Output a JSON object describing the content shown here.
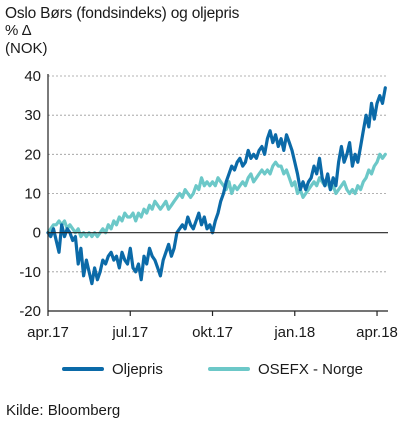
{
  "header": {
    "title": "Oslo Børs (fondsindeks) og oljepris",
    "unit_line1": "% Δ",
    "unit_line2": "(NOK)"
  },
  "source": "Kilde: Bloomberg",
  "colors": {
    "oljepris": "#0b6aa8",
    "osefx": "#6cc8c8",
    "grid": "#9a9a9a",
    "axis": "#222222"
  },
  "chart_data": {
    "type": "line",
    "title": "Oslo Børs (fondsindeks) og oljepris",
    "ylabel": "% Δ (NOK)",
    "xlabel": "",
    "ylim": [
      -20,
      40
    ],
    "yticks": [
      -20,
      -10,
      0,
      10,
      20,
      30,
      40
    ],
    "xlim": [
      0,
      12.4
    ],
    "xticks": [
      {
        "label": "apr.17",
        "pos": 0
      },
      {
        "label": "jul.17",
        "pos": 3
      },
      {
        "label": "okt.17",
        "pos": 6
      },
      {
        "label": "jan.18",
        "pos": 9
      },
      {
        "label": "apr.18",
        "pos": 12
      }
    ],
    "grid": "horizontal",
    "legend": "bottom",
    "series": [
      {
        "name": "Oljepris",
        "x": [
          0,
          0.1,
          0.2,
          0.3,
          0.4,
          0.5,
          0.6,
          0.7,
          0.8,
          0.9,
          1.0,
          1.1,
          1.2,
          1.3,
          1.4,
          1.5,
          1.6,
          1.7,
          1.8,
          1.9,
          2.0,
          2.1,
          2.2,
          2.3,
          2.4,
          2.5,
          2.6,
          2.7,
          2.8,
          2.9,
          3.0,
          3.1,
          3.2,
          3.3,
          3.4,
          3.5,
          3.6,
          3.7,
          3.8,
          3.9,
          4.0,
          4.1,
          4.2,
          4.3,
          4.4,
          4.5,
          4.6,
          4.7,
          4.8,
          4.9,
          5.0,
          5.1,
          5.2,
          5.3,
          5.4,
          5.5,
          5.6,
          5.7,
          5.8,
          5.9,
          6.0,
          6.1,
          6.2,
          6.3,
          6.4,
          6.5,
          6.6,
          6.7,
          6.8,
          6.9,
          7.0,
          7.1,
          7.2,
          7.3,
          7.4,
          7.5,
          7.6,
          7.7,
          7.8,
          7.9,
          8.0,
          8.1,
          8.2,
          8.3,
          8.4,
          8.5,
          8.6,
          8.7,
          8.8,
          8.9,
          9.0,
          9.1,
          9.2,
          9.3,
          9.4,
          9.5,
          9.6,
          9.7,
          9.8,
          9.9,
          10.0,
          10.1,
          10.2,
          10.3,
          10.4,
          10.5,
          10.6,
          10.7,
          10.8,
          10.9,
          11.0,
          11.1,
          11.2,
          11.3,
          11.4,
          11.5,
          11.6,
          11.7,
          11.8,
          11.9,
          12.0,
          12.1,
          12.2,
          12.3
        ],
        "values": [
          0,
          -1,
          1,
          -2,
          -5,
          2,
          -1,
          1,
          0,
          -2,
          -1,
          -8,
          -4,
          -11,
          -7,
          -10,
          -13,
          -9,
          -12,
          -10,
          -7,
          -8,
          -6,
          -5,
          -7,
          -6,
          -9,
          -5,
          -7,
          -8,
          -4,
          -9,
          -10,
          -8,
          -12,
          -6,
          -8,
          -4,
          -6,
          -7,
          -9,
          -11,
          -7,
          -5,
          -3,
          -6,
          -4,
          0,
          1,
          2,
          1,
          4,
          2,
          1,
          3,
          5,
          2,
          4,
          1,
          2,
          0,
          3,
          5,
          8,
          10,
          13,
          15,
          17,
          16,
          18,
          19,
          17,
          18,
          21,
          19,
          20,
          19,
          21,
          22,
          20,
          24,
          26,
          23,
          25,
          22,
          24,
          21,
          25,
          23,
          21,
          18,
          15,
          11,
          13,
          11,
          13,
          14,
          17,
          15,
          19,
          14,
          12,
          15,
          11,
          14,
          12,
          18,
          22,
          18,
          20,
          23,
          17,
          20,
          18,
          22,
          26,
          30,
          27,
          33,
          29,
          33,
          35,
          33,
          37
        ]
      },
      {
        "name": "OSEFX - Norge",
        "x": [
          0,
          0.1,
          0.2,
          0.3,
          0.4,
          0.5,
          0.6,
          0.7,
          0.8,
          0.9,
          1.0,
          1.1,
          1.2,
          1.3,
          1.4,
          1.5,
          1.6,
          1.7,
          1.8,
          1.9,
          2.0,
          2.1,
          2.2,
          2.3,
          2.4,
          2.5,
          2.6,
          2.7,
          2.8,
          2.9,
          3.0,
          3.1,
          3.2,
          3.3,
          3.4,
          3.5,
          3.6,
          3.7,
          3.8,
          3.9,
          4.0,
          4.1,
          4.2,
          4.3,
          4.4,
          4.5,
          4.6,
          4.7,
          4.8,
          4.9,
          5.0,
          5.1,
          5.2,
          5.3,
          5.4,
          5.5,
          5.6,
          5.7,
          5.8,
          5.9,
          6.0,
          6.1,
          6.2,
          6.3,
          6.4,
          6.5,
          6.6,
          6.7,
          6.8,
          6.9,
          7.0,
          7.1,
          7.2,
          7.3,
          7.4,
          7.5,
          7.6,
          7.7,
          7.8,
          7.9,
          8.0,
          8.1,
          8.2,
          8.3,
          8.4,
          8.5,
          8.6,
          8.7,
          8.8,
          8.9,
          9.0,
          9.1,
          9.2,
          9.3,
          9.4,
          9.5,
          9.6,
          9.7,
          9.8,
          9.9,
          10.0,
          10.1,
          10.2,
          10.3,
          10.4,
          10.5,
          10.6,
          10.7,
          10.8,
          10.9,
          11.0,
          11.1,
          11.2,
          11.3,
          11.4,
          11.5,
          11.6,
          11.7,
          11.8,
          11.9,
          12.0,
          12.1,
          12.2,
          12.3
        ],
        "values": [
          0,
          1,
          2,
          2,
          3,
          2,
          3,
          1,
          2,
          1,
          0,
          1,
          -1,
          0,
          -1,
          0,
          -1,
          0,
          -1,
          0,
          1,
          0,
          2,
          1,
          3,
          2,
          4,
          3,
          5,
          4,
          4,
          5,
          3,
          5,
          4,
          6,
          5,
          7,
          6,
          8,
          7,
          6,
          7,
          8,
          6,
          7,
          8,
          9,
          10,
          9,
          11,
          10,
          9,
          10,
          12,
          11,
          14,
          12,
          13,
          12,
          13,
          12,
          14,
          13,
          12,
          11,
          13,
          10,
          12,
          11,
          12,
          13,
          12,
          14,
          15,
          13,
          14,
          15,
          16,
          15,
          16,
          15,
          17,
          18,
          17,
          17,
          15,
          16,
          14,
          12,
          13,
          10,
          11,
          9,
          10,
          11,
          12,
          13,
          12,
          14,
          13,
          12,
          13,
          11,
          12,
          10,
          11,
          12,
          13,
          11,
          10,
          11,
          10,
          12,
          11,
          13,
          14,
          16,
          15,
          17,
          18,
          20,
          19,
          20
        ]
      }
    ]
  }
}
